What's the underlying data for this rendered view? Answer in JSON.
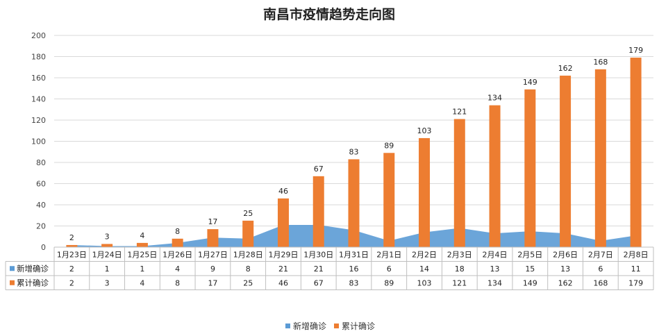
{
  "chart_data": {
    "type": "bar",
    "title": "南昌市疫情趋势走向图",
    "categories": [
      "1月23日",
      "1月24日",
      "1月25日",
      "1月26日",
      "1月27日",
      "1月28日",
      "1月29日",
      "1月30日",
      "1月31日",
      "2月1日",
      "2月2日",
      "2月3日",
      "2月4日",
      "2月5日",
      "2月6日",
      "2月7日",
      "2月8日"
    ],
    "series": [
      {
        "name": "新增确诊",
        "render": "area",
        "color": "#5B9BD5",
        "values": [
          2,
          1,
          1,
          4,
          9,
          8,
          21,
          21,
          16,
          6,
          14,
          18,
          13,
          15,
          13,
          6,
          11
        ]
      },
      {
        "name": "累计确诊",
        "render": "bar",
        "color": "#ED7D31",
        "values": [
          2,
          3,
          4,
          8,
          17,
          25,
          46,
          67,
          83,
          89,
          103,
          121,
          134,
          149,
          162,
          168,
          179
        ]
      }
    ],
    "ylim": [
      0,
      200
    ],
    "yticks": [
      0,
      20,
      40,
      60,
      80,
      100,
      120,
      140,
      160,
      180,
      200
    ],
    "grid": true,
    "data_labels_series": "累计确诊",
    "data_table": true,
    "legend_position": "bottom"
  }
}
